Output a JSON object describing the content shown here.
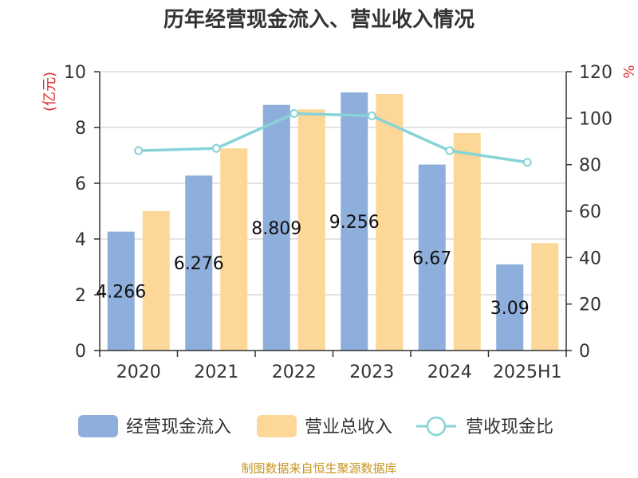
{
  "chart_data": {
    "type": "bar",
    "title": "历年经营现金流入、营业收入情况",
    "categories": [
      "2020",
      "2021",
      "2022",
      "2023",
      "2024",
      "2025H1"
    ],
    "y_left": {
      "unit_label": "(亿元)",
      "ylim": [
        0,
        10
      ],
      "ticks": [
        "0",
        "2",
        "4",
        "6",
        "8",
        "10"
      ]
    },
    "y_right": {
      "unit_label": "%",
      "ylim": [
        0,
        120
      ],
      "ticks": [
        "0",
        "20",
        "40",
        "60",
        "80",
        "100",
        "120"
      ]
    },
    "series": [
      {
        "name": "经营现金流入",
        "type": "bar",
        "axis": "left",
        "color": "#8eaedb",
        "values": [
          4.266,
          6.276,
          8.809,
          9.256,
          6.67,
          3.09
        ],
        "labels": [
          "4.266",
          "6.276",
          "8.809",
          "9.256",
          "6.67",
          "3.09"
        ]
      },
      {
        "name": "营业总收入",
        "type": "bar",
        "axis": "left",
        "color": "#fdd797",
        "values": [
          5.0,
          7.25,
          8.65,
          9.2,
          7.8,
          3.85
        ]
      },
      {
        "name": "营收现金比",
        "type": "line",
        "axis": "right",
        "color": "#86d3d8",
        "values": [
          86,
          87,
          102,
          101,
          86,
          81
        ]
      }
    ],
    "grid": true,
    "legend_position": "bottom"
  },
  "source": "制图数据来自恒生聚源数据库"
}
